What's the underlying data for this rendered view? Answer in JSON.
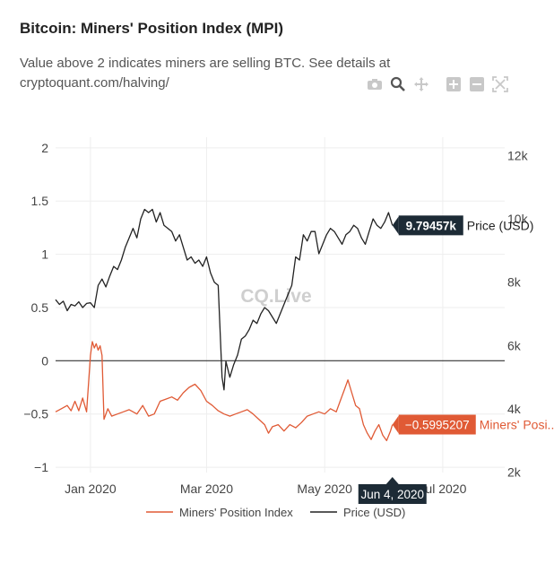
{
  "title": "Bitcoin: Miners' Position Index (MPI)",
  "subtitle": "Value above 2 indicates miners are selling BTC. See details at cryptoquant.com/halving/",
  "watermark": "CQ.Live",
  "modebar": [
    "camera-icon",
    "zoom-icon",
    "pan-icon",
    "zoom-in-icon",
    "zoom-out-icon",
    "autoscale-icon"
  ],
  "colors": {
    "mpi": "#e05a35",
    "price": "#222222",
    "grid": "#eeeeee",
    "zero": "#333333",
    "hover_bg": "#1d2b36"
  },
  "chart_data": {
    "type": "line",
    "x_ticks": [
      "Jan 2020",
      "Mar 2020",
      "May 2020",
      "Jul 2020"
    ],
    "x_tick_days": [
      0,
      60,
      121,
      182
    ],
    "x_range_days": [
      -18,
      214
    ],
    "y_left": {
      "ticks": [
        "2",
        "1.5",
        "1",
        "0.5",
        "0",
        "−0.5",
        "−1"
      ],
      "tick_values": [
        2,
        1.5,
        1,
        0.5,
        0,
        -0.5,
        -1
      ],
      "range": [
        -1.05,
        2.1
      ]
    },
    "y_right": {
      "ticks": [
        "12k",
        "10k",
        "8k",
        "6k",
        "4k",
        "2k"
      ],
      "tick_values": [
        12000,
        10000,
        8000,
        6000,
        4000,
        2000
      ],
      "range": [
        1990,
        12580
      ]
    },
    "hover": {
      "date": "Jun 4, 2020",
      "date_day": 156,
      "price": "9.79457k",
      "price_value": 9795,
      "mpi": "−0.5995207",
      "mpi_value": -0.5995207
    },
    "series": [
      {
        "name": "Miners' Position Index",
        "hover_name": "Miners' Posi...",
        "axis": "left",
        "points": [
          [
            -18,
            -0.48
          ],
          [
            -15,
            -0.45
          ],
          [
            -12,
            -0.42
          ],
          [
            -10,
            -0.47
          ],
          [
            -8,
            -0.38
          ],
          [
            -6,
            -0.47
          ],
          [
            -4,
            -0.35
          ],
          [
            -2,
            -0.48
          ],
          [
            0,
            0.05
          ],
          [
            1,
            0.18
          ],
          [
            2,
            0.12
          ],
          [
            3,
            0.16
          ],
          [
            4,
            0.1
          ],
          [
            5,
            0.14
          ],
          [
            6,
            0.05
          ],
          [
            7,
            -0.55
          ],
          [
            9,
            -0.45
          ],
          [
            11,
            -0.52
          ],
          [
            14,
            -0.5
          ],
          [
            17,
            -0.48
          ],
          [
            20,
            -0.46
          ],
          [
            24,
            -0.5
          ],
          [
            27,
            -0.42
          ],
          [
            30,
            -0.52
          ],
          [
            33,
            -0.5
          ],
          [
            36,
            -0.38
          ],
          [
            39,
            -0.36
          ],
          [
            42,
            -0.34
          ],
          [
            45,
            -0.37
          ],
          [
            48,
            -0.3
          ],
          [
            51,
            -0.25
          ],
          [
            54,
            -0.22
          ],
          [
            57,
            -0.28
          ],
          [
            60,
            -0.38
          ],
          [
            63,
            -0.42
          ],
          [
            66,
            -0.47
          ],
          [
            69,
            -0.5
          ],
          [
            72,
            -0.52
          ],
          [
            75,
            -0.5
          ],
          [
            78,
            -0.48
          ],
          [
            81,
            -0.46
          ],
          [
            84,
            -0.5
          ],
          [
            87,
            -0.55
          ],
          [
            90,
            -0.6
          ],
          [
            92,
            -0.68
          ],
          [
            94,
            -0.62
          ],
          [
            97,
            -0.6
          ],
          [
            100,
            -0.66
          ],
          [
            103,
            -0.6
          ],
          [
            106,
            -0.63
          ],
          [
            109,
            -0.58
          ],
          [
            112,
            -0.52
          ],
          [
            115,
            -0.5
          ],
          [
            118,
            -0.48
          ],
          [
            121,
            -0.5
          ],
          [
            124,
            -0.45
          ],
          [
            127,
            -0.48
          ],
          [
            129,
            -0.38
          ],
          [
            131,
            -0.28
          ],
          [
            133,
            -0.18
          ],
          [
            135,
            -0.3
          ],
          [
            137,
            -0.42
          ],
          [
            139,
            -0.45
          ],
          [
            141,
            -0.6
          ],
          [
            143,
            -0.68
          ],
          [
            145,
            -0.74
          ],
          [
            147,
            -0.66
          ],
          [
            149,
            -0.6
          ],
          [
            151,
            -0.7
          ],
          [
            153,
            -0.75
          ],
          [
            155,
            -0.66
          ],
          [
            156,
            -0.6
          ]
        ]
      },
      {
        "name": "Price (USD)",
        "hover_name": "Price (USD)",
        "axis": "right",
        "points": [
          [
            -18,
            7450
          ],
          [
            -16,
            7300
          ],
          [
            -14,
            7400
          ],
          [
            -12,
            7100
          ],
          [
            -10,
            7300
          ],
          [
            -8,
            7250
          ],
          [
            -6,
            7380
          ],
          [
            -4,
            7200
          ],
          [
            -2,
            7330
          ],
          [
            0,
            7350
          ],
          [
            2,
            7200
          ],
          [
            4,
            7900
          ],
          [
            6,
            8100
          ],
          [
            8,
            7850
          ],
          [
            10,
            8200
          ],
          [
            12,
            8500
          ],
          [
            14,
            8400
          ],
          [
            16,
            8700
          ],
          [
            18,
            9100
          ],
          [
            20,
            9400
          ],
          [
            22,
            9700
          ],
          [
            24,
            9400
          ],
          [
            26,
            10000
          ],
          [
            28,
            10300
          ],
          [
            30,
            10200
          ],
          [
            32,
            10300
          ],
          [
            34,
            9900
          ],
          [
            36,
            10200
          ],
          [
            38,
            9800
          ],
          [
            40,
            9700
          ],
          [
            42,
            9600
          ],
          [
            44,
            9300
          ],
          [
            46,
            9500
          ],
          [
            48,
            9100
          ],
          [
            50,
            8700
          ],
          [
            52,
            8800
          ],
          [
            54,
            8600
          ],
          [
            56,
            8700
          ],
          [
            58,
            8500
          ],
          [
            60,
            8800
          ],
          [
            62,
            8300
          ],
          [
            64,
            8000
          ],
          [
            66,
            7900
          ],
          [
            68,
            5000
          ],
          [
            69,
            4600
          ],
          [
            70,
            5500
          ],
          [
            72,
            5000
          ],
          [
            74,
            5400
          ],
          [
            76,
            5700
          ],
          [
            78,
            6200
          ],
          [
            80,
            6300
          ],
          [
            82,
            6500
          ],
          [
            84,
            6800
          ],
          [
            86,
            6700
          ],
          [
            88,
            7000
          ],
          [
            90,
            7200
          ],
          [
            92,
            7100
          ],
          [
            94,
            6900
          ],
          [
            96,
            6700
          ],
          [
            98,
            7000
          ],
          [
            100,
            7300
          ],
          [
            102,
            7600
          ],
          [
            104,
            7900
          ],
          [
            106,
            8800
          ],
          [
            108,
            8700
          ],
          [
            110,
            9500
          ],
          [
            112,
            9300
          ],
          [
            114,
            9600
          ],
          [
            116,
            9600
          ],
          [
            118,
            8900
          ],
          [
            120,
            9200
          ],
          [
            122,
            9500
          ],
          [
            124,
            9700
          ],
          [
            126,
            9600
          ],
          [
            128,
            9400
          ],
          [
            130,
            9200
          ],
          [
            132,
            9500
          ],
          [
            134,
            9600
          ],
          [
            136,
            9800
          ],
          [
            138,
            9700
          ],
          [
            140,
            9400
          ],
          [
            142,
            9200
          ],
          [
            144,
            9600
          ],
          [
            146,
            10000
          ],
          [
            148,
            9800
          ],
          [
            150,
            9700
          ],
          [
            152,
            9900
          ],
          [
            154,
            10200
          ],
          [
            156,
            9795
          ]
        ]
      }
    ]
  }
}
